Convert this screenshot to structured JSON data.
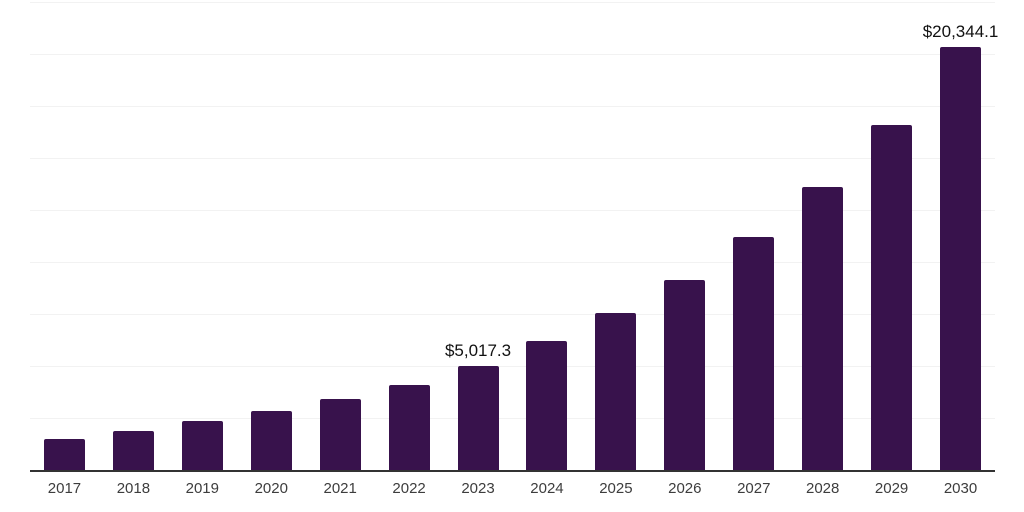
{
  "chart_data": {
    "type": "bar",
    "title": "",
    "xlabel": "",
    "ylabel": "",
    "categories": [
      "2017",
      "2018",
      "2019",
      "2020",
      "2021",
      "2022",
      "2023",
      "2024",
      "2025",
      "2026",
      "2027",
      "2028",
      "2029",
      "2030"
    ],
    "values": [
      1480,
      1870,
      2350,
      2840,
      3430,
      4110,
      5017.3,
      6190,
      7530,
      9130,
      11210,
      13630,
      16610,
      20344.1
    ],
    "value_labels": {
      "2023": "$5,017.3",
      "2030": "$20,344.1"
    },
    "ylim": [
      0,
      22500
    ],
    "gridline_interval": 2500,
    "grid": true,
    "legend_position": "none",
    "colors": {
      "bar": "#38124C",
      "axis_line": "#333333",
      "gridline": "#f2f2f2",
      "tick_label": "#3d3d3d",
      "value_label": "#111111",
      "background": "#ffffff"
    }
  }
}
